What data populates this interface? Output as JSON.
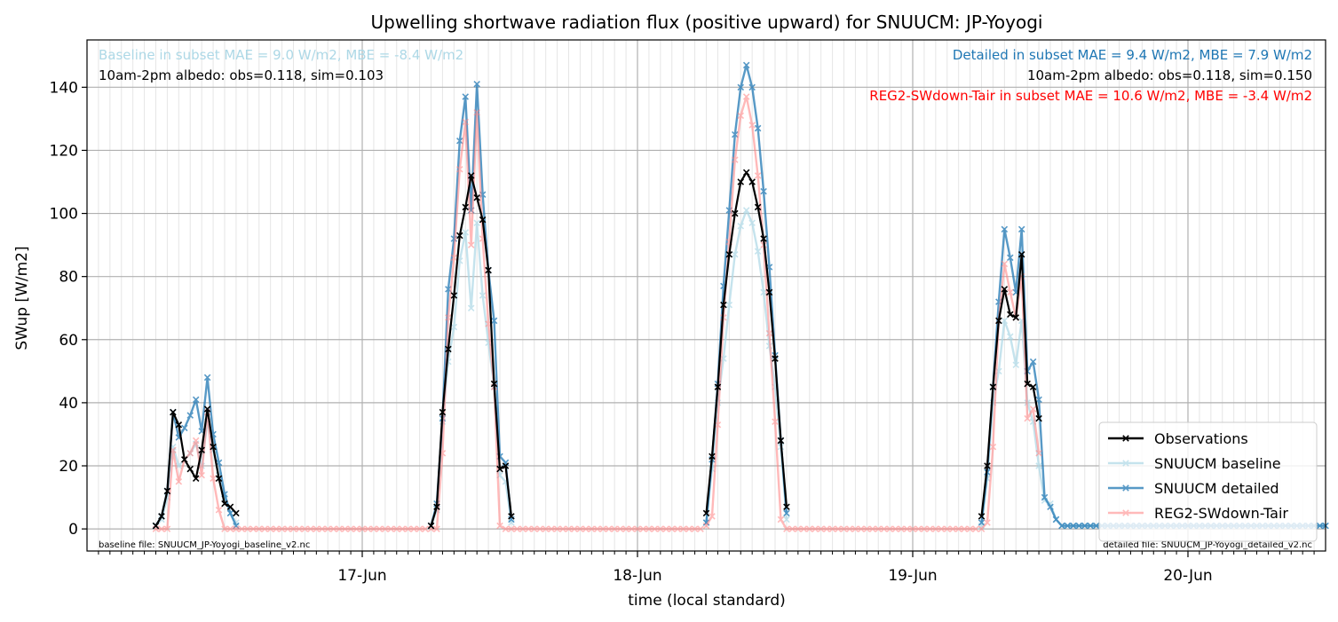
{
  "chart_data": {
    "type": "line",
    "title": "Upwelling shortwave radiation flux (positive upward) for SNUUCM: JP-Yoyogi",
    "xlabel": "time (local standard)",
    "ylabel": "SWup [W/m2]",
    "xlim": [
      "2011-06-16T00:00",
      "2011-06-20T12:00"
    ],
    "ylim": [
      -7,
      155
    ],
    "y_ticks": [
      0,
      20,
      40,
      60,
      80,
      100,
      120,
      140
    ],
    "x_ticks": [
      "17-Jun",
      "18-Jun",
      "19-Jun",
      "20-Jun"
    ],
    "grid": true,
    "legend_position": "lower-right",
    "annotations": {
      "baseline_stats": "Baseline in subset MAE = 9.0 W/m2, MBE = -8.4 W/m2",
      "baseline_albedo": "10am-2pm albedo: obs=0.118, sim=0.103",
      "detailed_stats": "Detailed in subset MAE = 9.4 W/m2, MBE = 7.9 W/m2",
      "detailed_albedo": "10am-2pm albedo: obs=0.118, sim=0.150",
      "reg2_stats": "REG2-SWdown-Tair in subset MAE = 10.6 W/m2, MBE = -3.4 W/m2",
      "baseline_file": "baseline file: SNUUCM_JP-Yoyogi_baseline_v2.nc",
      "detailed_file": "detailed file: SNUUCM_JP-Yoyogi_detailed_v2.nc"
    },
    "series": [
      {
        "name": "SNUUCM baseline",
        "color": "#add8e6",
        "start": "2011-06-16T06:00",
        "step_minutes": 30,
        "values": [
          1,
          3,
          10,
          26,
          20,
          22,
          24,
          27,
          20,
          34,
          25,
          17,
          10,
          5,
          2,
          null,
          null,
          null,
          null,
          null,
          null,
          null,
          null,
          null,
          null,
          null,
          null,
          null,
          null,
          null,
          null,
          null,
          null,
          null,
          null,
          null,
          null,
          null,
          null,
          null,
          null,
          null,
          null,
          null,
          null,
          null,
          null,
          null,
          null,
          null,
          null,
          null,
          null,
          null,
          null,
          null,
          null,
          null,
          null,
          null,
          null,
          null,
          null,
          null,
          null,
          null,
          null,
          null,
          null,
          null,
          null,
          null,
          null,
          null,
          null,
          null,
          null,
          null,
          null,
          null,
          null,
          null,
          null,
          null,
          null,
          null,
          null,
          null,
          null,
          null,
          null,
          null,
          null,
          null,
          null,
          null,
          null,
          null,
          null,
          null,
          null,
          null,
          null,
          null,
          null,
          null,
          null,
          null,
          null,
          null,
          null,
          null,
          null,
          null,
          null,
          null,
          null,
          null,
          null,
          null,
          null,
          null,
          null,
          null,
          null,
          null,
          null,
          null,
          null,
          null,
          null,
          null,
          null,
          null,
          null,
          null,
          null,
          null,
          null,
          null,
          null,
          null,
          null,
          null,
          null,
          null,
          null,
          null,
          null,
          null,
          null,
          null,
          null,
          null,
          null,
          null,
          null,
          null,
          null,
          null,
          null,
          null,
          null,
          null,
          null,
          null,
          null,
          null,
          null,
          null,
          null,
          null,
          null,
          null,
          null,
          null,
          null,
          null,
          null,
          null,
          null,
          null,
          null,
          null,
          null,
          null,
          null,
          null,
          null,
          null,
          null,
          null,
          null,
          null,
          null,
          null,
          null,
          null,
          null,
          null,
          null,
          null,
          null,
          null,
          null,
          null,
          null
        ],
        "segments": [
          {
            "start": "2011-06-16T06:00",
            "values": [
              1,
              3,
              10,
              26,
              20,
              22,
              24,
              27,
              20,
              34,
              25,
              17,
              10,
              5,
              2
            ]
          },
          {
            "start": "2011-06-17T06:00",
            "values": [
              1,
              6,
              34,
              53,
              64,
              85,
              94,
              70,
              97,
              74,
              59,
              45,
              17,
              15,
              2
            ]
          },
          {
            "start": "2011-06-18T06:00",
            "values": [
              2,
              19,
              40,
              54,
              71,
              87,
              96,
              101,
              97,
              88,
              75,
              58,
              45,
              26,
              3
            ]
          },
          {
            "start": "2011-06-19T06:00",
            "values": [
              1,
              16,
              40,
              50,
              66,
              61,
              52,
              66,
              40,
              34,
              20,
              9,
              8,
              3,
              1,
              1,
              1,
              1,
              1,
              1,
              1,
              1,
              1,
              1,
              1,
              1,
              1,
              1,
              1,
              1,
              1,
              1,
              1,
              1,
              1,
              1,
              1,
              1,
              1,
              1,
              1,
              1,
              1,
              1,
              1,
              1,
              1,
              1,
              1,
              1,
              1,
              1,
              1,
              1,
              1,
              1,
              1,
              1,
              1,
              1,
              1,
              1,
              1
            ]
          }
        ]
      },
      {
        "name": "SNUUCM detailed",
        "color": "#1f77b4",
        "segments": [
          {
            "start": "2011-06-16T06:00",
            "values": [
              1,
              4,
              12,
              37,
              29,
              32,
              36,
              41,
              31,
              48,
              30,
              21,
              11,
              5,
              1
            ]
          },
          {
            "start": "2011-06-17T06:00",
            "values": [
              1,
              8,
              35,
              76,
              92,
              123,
              137,
              101,
              141,
              106,
              82,
              66,
              23,
              21,
              3
            ]
          },
          {
            "start": "2011-06-18T06:00",
            "values": [
              2,
              22,
              46,
              77,
              101,
              125,
              140,
              147,
              140,
              127,
              107,
              83,
              55,
              28,
              5
            ]
          },
          {
            "start": "2011-06-19T06:00",
            "values": [
              2,
              18,
              45,
              72,
              95,
              86,
              75,
              95,
              50,
              53,
              41,
              10,
              7,
              3,
              1,
              1,
              1,
              1,
              1,
              1,
              1,
              1,
              1,
              1,
              1,
              1,
              1,
              1,
              1,
              1,
              1,
              1,
              1,
              1,
              1,
              1,
              1,
              1,
              1,
              1,
              1,
              1,
              1,
              1,
              1,
              1,
              1,
              1,
              1,
              1,
              1,
              1,
              1,
              1,
              1,
              1,
              1,
              1,
              1,
              1,
              1,
              1,
              1
            ]
          }
        ]
      },
      {
        "name": "REG2-SWdown-Tair",
        "color": "#ff8080",
        "segments": [
          {
            "start": "2011-06-16T06:00",
            "values": [
              0,
              0,
              0,
              25,
              15,
              22,
              24,
              28,
              17,
              37,
              16,
              6,
              0,
              0,
              0,
              0,
              0,
              0,
              0,
              0,
              0,
              0,
              0,
              0,
              0,
              0,
              0,
              0,
              0,
              0,
              0,
              0,
              0,
              0,
              0,
              0,
              0,
              0,
              0,
              0,
              0,
              0,
              0,
              0,
              0,
              0,
              0,
              0
            ]
          },
          {
            "start": "2011-06-17T06:00",
            "values": [
              0,
              0,
              24,
              67,
              86,
              114,
              129,
              90,
              132,
              92,
              65,
              45,
              1,
              0,
              0,
              0,
              0,
              0,
              0,
              0,
              0,
              0,
              0,
              0,
              0,
              0,
              0,
              0,
              0,
              0,
              0,
              0,
              0,
              0,
              0,
              0,
              0,
              0,
              0,
              0,
              0,
              0,
              0,
              0,
              0,
              0,
              0,
              0
            ]
          },
          {
            "start": "2011-06-18T06:00",
            "values": [
              1,
              4,
              33,
              67,
              91,
              117,
              131,
              137,
              128,
              112,
              90,
              62,
              34,
              3,
              0,
              0,
              0,
              0,
              0,
              0,
              0,
              0,
              0,
              0,
              0,
              0,
              0,
              0,
              0,
              0,
              0,
              0,
              0,
              0,
              0,
              0,
              0,
              0,
              0,
              0,
              0,
              0,
              0,
              0,
              0,
              0,
              0,
              0
            ]
          },
          {
            "start": "2011-06-19T06:00",
            "values": [
              0,
              2,
              26,
              66,
              84,
              75,
              67,
              80,
              35,
              38,
              24
            ]
          }
        ]
      },
      {
        "name": "Observations",
        "color": "#000000",
        "segments": [
          {
            "start": "2011-06-16T06:00",
            "values": [
              1,
              4,
              12,
              37,
              33,
              22,
              19,
              16,
              25,
              38,
              26,
              16,
              8,
              7,
              5
            ]
          },
          {
            "start": "2011-06-17T06:00",
            "values": [
              1,
              7,
              37,
              57,
              74,
              93,
              102,
              112,
              105,
              98,
              82,
              46,
              19,
              20,
              4
            ]
          },
          {
            "start": "2011-06-18T06:00",
            "values": [
              5,
              23,
              45,
              71,
              87,
              100,
              110,
              113,
              110,
              102,
              92,
              75,
              54,
              28,
              7
            ]
          },
          {
            "start": "2011-06-19T06:00",
            "values": [
              4,
              20,
              45,
              66,
              76,
              68,
              67,
              87,
              46,
              45,
              35
            ]
          }
        ]
      }
    ]
  }
}
